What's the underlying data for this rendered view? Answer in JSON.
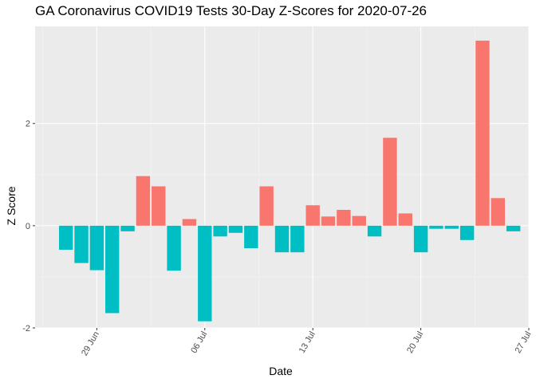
{
  "chart_data": {
    "type": "bar",
    "title": "GA Coronavirus COVID19 Tests 30-Day Z-Scores for 2020-07-26",
    "xlabel": "Date",
    "ylabel": "Z Score",
    "x_start_date": "2020-06-27",
    "x_tick_labels": [
      "29 Jun",
      "06 Jul",
      "13 Jul",
      "20 Jul",
      "27 Jul"
    ],
    "y_tick_labels": [
      "-2",
      "0",
      "2"
    ],
    "ylim": [
      -2.0,
      3.9
    ],
    "xlim": [
      "2020-06-25",
      "2020-07-27"
    ],
    "grid": true,
    "legend": "none",
    "x": [
      "2020-06-27",
      "2020-06-28",
      "2020-06-29",
      "2020-06-30",
      "2020-07-01",
      "2020-07-02",
      "2020-07-03",
      "2020-07-04",
      "2020-07-05",
      "2020-07-06",
      "2020-07-07",
      "2020-07-08",
      "2020-07-09",
      "2020-07-10",
      "2020-07-11",
      "2020-07-12",
      "2020-07-13",
      "2020-07-14",
      "2020-07-15",
      "2020-07-16",
      "2020-07-17",
      "2020-07-18",
      "2020-07-19",
      "2020-07-20",
      "2020-07-21",
      "2020-07-22",
      "2020-07-23",
      "2020-07-24",
      "2020-07-25",
      "2020-07-26"
    ],
    "values": [
      -0.47,
      -0.73,
      -0.87,
      -1.71,
      -0.11,
      0.97,
      0.77,
      -0.88,
      0.13,
      -1.87,
      -0.21,
      -0.14,
      -0.44,
      0.77,
      -0.52,
      -0.52,
      0.4,
      0.18,
      0.31,
      0.19,
      -0.21,
      1.72,
      0.24,
      -0.52,
      -0.06,
      -0.06,
      -0.28,
      3.62,
      0.54,
      -0.11
    ],
    "colors": {
      "positive": "#F8766D",
      "negative": "#00BFC4",
      "panel": "#EBEBEB",
      "grid_major": "#FFFFFF",
      "grid_minor": "#F5F5F5"
    }
  }
}
